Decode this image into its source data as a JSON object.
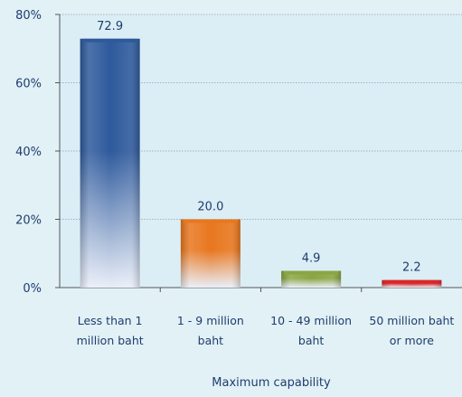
{
  "chart_data": {
    "type": "bar",
    "title": "",
    "xlabel": "Maximum capability",
    "ylabel": "",
    "ylim": [
      0,
      80
    ],
    "yticks": [
      "0%",
      "20%",
      "40%",
      "60%",
      "80%"
    ],
    "categories": [
      [
        "Less than 1",
        "million baht"
      ],
      [
        "1 - 9 million",
        "baht"
      ],
      [
        "10 - 49 million",
        "baht"
      ],
      [
        "50 million baht",
        "or more"
      ]
    ],
    "values": [
      72.9,
      20.0,
      4.9,
      2.2
    ],
    "value_labels": [
      "72.9",
      "20.0",
      "4.9",
      "2.2"
    ],
    "bar_colors": [
      "#2e5a9c",
      "#e8771f",
      "#8aa544",
      "#d8282a"
    ],
    "grid": true,
    "legend": "none"
  },
  "background_color": "#e2f1f6",
  "plot_background_color": "#dbeef5"
}
